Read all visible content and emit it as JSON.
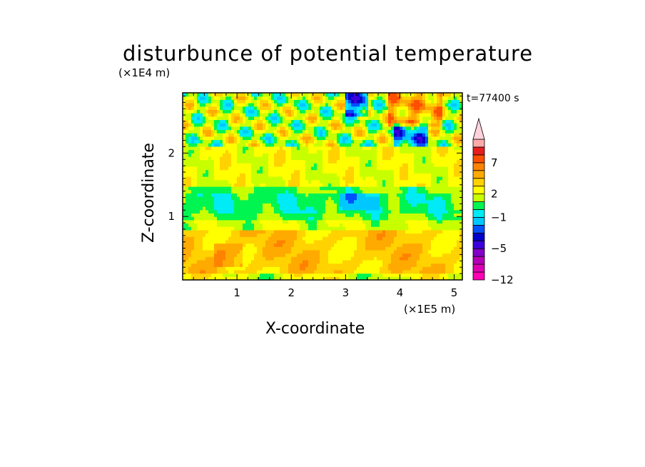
{
  "chart_data": {
    "type": "heatmap",
    "title": "disturbunce of potential temperature",
    "time_label": "t=77400 s",
    "xlabel": "X-coordinate",
    "ylabel": "Z-coordinate",
    "x_unit": "(×1E5 m)",
    "y_unit": "(×1E4 m)",
    "xlim": [
      0,
      5.15
    ],
    "ylim": [
      0,
      2.95
    ],
    "x_ticks": [
      "1",
      "2",
      "3",
      "4",
      "5"
    ],
    "y_ticks": [
      "1",
      "2"
    ],
    "colorbar": {
      "tick_labels": [
        "7",
        "2",
        "−1",
        "−5",
        "−12"
      ],
      "levels": [
        -12,
        -10,
        -8,
        -6,
        -5,
        -4,
        -3,
        -2,
        -1,
        0,
        1,
        2,
        3,
        4,
        5,
        7,
        9,
        11
      ],
      "colors": [
        "#ff00b4",
        "#dc00b4",
        "#b400b4",
        "#8200c8",
        "#3c00dc",
        "#0000c8",
        "#0050ff",
        "#00c8ff",
        "#00ebf5",
        "#00f550",
        "#c8ff00",
        "#ffff00",
        "#ffd200",
        "#ffaa00",
        "#ff8200",
        "#ff5000",
        "#e61e1e",
        "#ffaaaa",
        "#ffd2dc"
      ]
    },
    "regions": [
      {
        "x_range": [
          0,
          5.15
        ],
        "z_range": [
          0,
          0.8
        ],
        "level": 3,
        "pattern": "yellow-orange layer"
      },
      {
        "x_range": [
          0,
          5.15
        ],
        "z_range": [
          0.8,
          1.5
        ],
        "level": 0,
        "pattern": "green band with cyan patches"
      },
      {
        "x_range": [
          0,
          5.15
        ],
        "z_range": [
          1.5,
          2.1
        ],
        "level": 1,
        "pattern": "yellow band"
      },
      {
        "x_range": [
          0,
          5.15
        ],
        "z_range": [
          2.1,
          2.95
        ],
        "level": "mixed",
        "pattern": "alternating warm/cold cells"
      }
    ]
  }
}
